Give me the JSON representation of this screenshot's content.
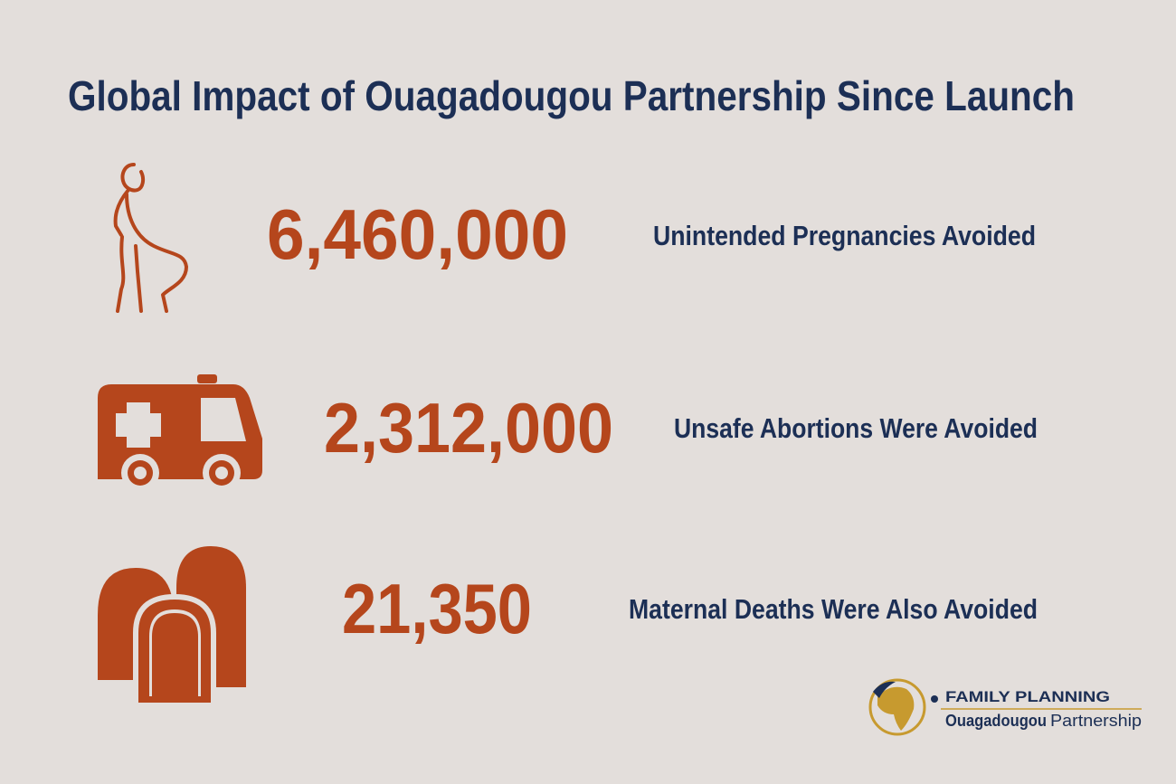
{
  "header": {
    "title": "Global Impact of Ouagadougou Partnership Since Launch"
  },
  "stats": [
    {
      "value": "6,460,000",
      "label": "Unintended Pregnancies Avoided"
    },
    {
      "value": "2,312,000",
      "label": "Unsafe Abortions Were Avoided"
    },
    {
      "value": "21,350",
      "label": "Maternal Deaths Were Also Avoided"
    }
  ],
  "logo": {
    "line1": "FAMILY PLANNING",
    "line2_bold": "Ouagadougou",
    "line2_rest": "Partnership"
  }
}
